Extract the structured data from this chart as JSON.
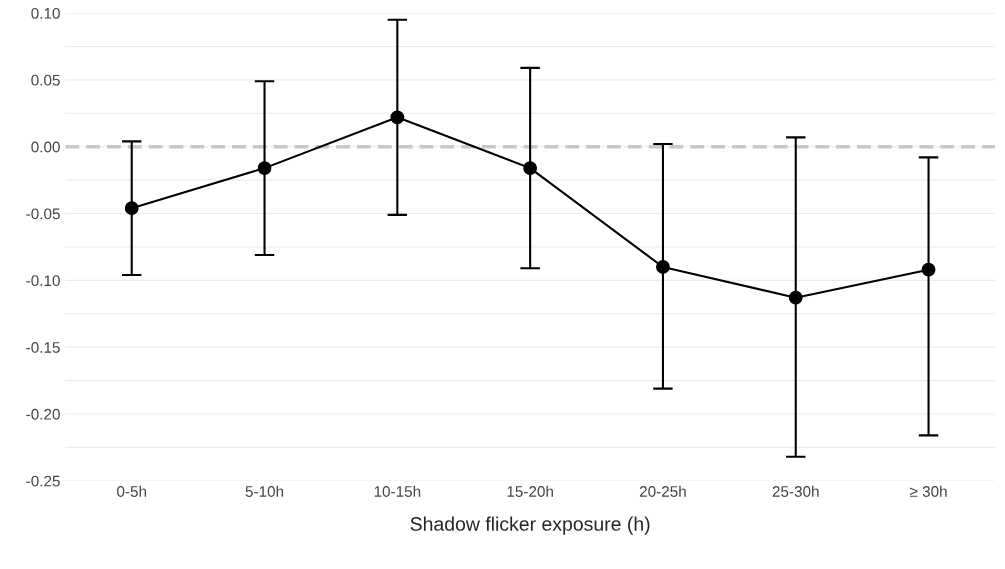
{
  "chart_data": {
    "type": "line",
    "xlabel": "Shadow flicker exposure (h)",
    "categories": [
      "0-5h",
      "5-10h",
      "10-15h",
      "15-20h",
      "20-25h",
      "25-30h",
      "≥ 30h"
    ],
    "series": [
      {
        "color": "#000000",
        "values": [
          -0.046,
          -0.016,
          0.022,
          -0.016,
          -0.09,
          -0.113,
          -0.092
        ],
        "errors": [
          [
            -0.096,
            0.004
          ],
          [
            -0.081,
            0.049
          ],
          [
            -0.051,
            0.095
          ],
          [
            -0.091,
            0.059
          ],
          [
            -0.181,
            0.002
          ],
          [
            -0.232,
            0.007
          ],
          [
            -0.216,
            -0.008
          ]
        ]
      }
    ],
    "marker": "circle",
    "line_style": "solid",
    "ylim": [
      -0.25,
      0.1
    ],
    "yticks": [
      {
        "value": -0.25,
        "label": "-0.25"
      },
      {
        "value": -0.225,
        "label": null
      },
      {
        "value": -0.2,
        "label": "-0.20"
      },
      {
        "value": -0.175,
        "label": null
      },
      {
        "value": -0.15,
        "label": "-0.15"
      },
      {
        "value": -0.125,
        "label": null
      },
      {
        "value": -0.1,
        "label": "-0.10"
      },
      {
        "value": -0.075,
        "label": null
      },
      {
        "value": -0.05,
        "label": "-0.05"
      },
      {
        "value": -0.025,
        "label": null
      },
      {
        "value": 0,
        "label": "0.00"
      },
      {
        "value": 0.025,
        "label": null
      },
      {
        "value": 0.05,
        "label": "0.05"
      },
      {
        "value": 0.075,
        "label": null
      },
      {
        "value": 0.1,
        "label": "0.10"
      }
    ],
    "grid": "y",
    "ref_lines": [
      {
        "axis": "y",
        "value": 0,
        "color": "#c8c8c8",
        "line_style": "dashed"
      }
    ]
  }
}
